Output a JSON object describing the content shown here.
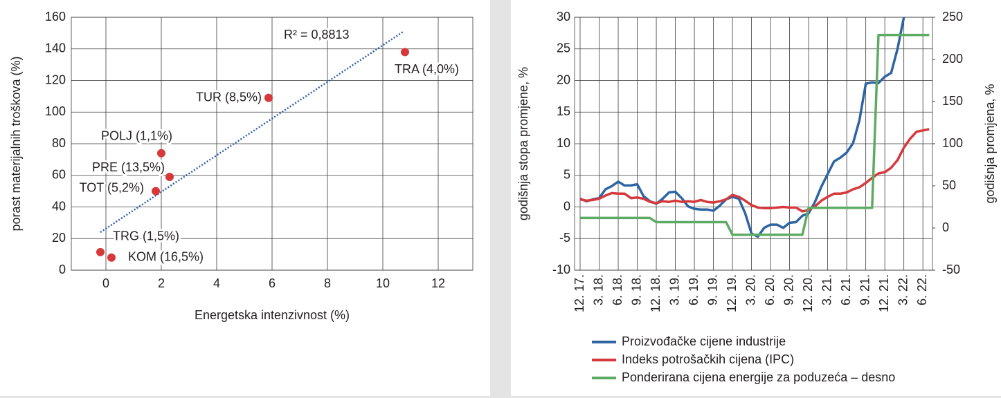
{
  "chart_data": [
    {
      "type": "scatter",
      "xlabel": "Energetska intenzivnost (%)",
      "ylabel": "porast materijalnih troškova (%)",
      "labels": [
        "TRA (4,0%)",
        "TUR (8,5%)",
        "POLJ (1,1%)",
        "PRE (13,5%)",
        "TOT (5,2%)",
        "TRG (1,5%)",
        "KOM (16,5%)"
      ],
      "x": [
        10.8,
        5.875,
        2.0,
        2.3,
        1.8,
        -0.2,
        0.2
      ],
      "y": [
        138,
        109,
        74,
        59,
        50,
        11.4,
        8
      ],
      "color": "#d7383b",
      "trendline": {
        "x": [
          -0.2,
          10.75
        ],
        "y": [
          24,
          151
        ],
        "color": "#2b5ea7",
        "label": "R² = 0,8813"
      },
      "xlim": [
        -1.25,
        13.25
      ],
      "xticks": [
        0,
        2,
        4,
        6,
        8,
        10,
        12
      ],
      "ylim": [
        0,
        160
      ],
      "yticks": [
        0,
        20,
        40,
        60,
        80,
        100,
        120,
        140,
        160
      ],
      "grid": true
    },
    {
      "type": "line",
      "ylabel": "godišnja stopa promjene, %",
      "y2label": "godišnja promjena, %",
      "categories": [
        "12. 17.",
        null,
        null,
        "3. 18.",
        null,
        null,
        "6. 18.",
        null,
        null,
        "9. 18.",
        null,
        null,
        "12. 18.",
        null,
        null,
        "3. 19.",
        null,
        null,
        "6. 19.",
        null,
        null,
        "9. 19.",
        null,
        null,
        "12. 19.",
        null,
        null,
        "3. 20.",
        null,
        null,
        "6. 20.",
        null,
        null,
        "9. 20.",
        null,
        null,
        "12. 20.",
        null,
        null,
        "3. 21.",
        null,
        null,
        "6. 21.",
        null,
        null,
        "9. 21.",
        null,
        null,
        "12. 21.",
        null,
        null,
        "3. 22.",
        null,
        null,
        "6. 22.",
        null
      ],
      "series": [
        {
          "name": "Proizvođačke cijene industrije",
          "color": "#2f64a3",
          "values": [
            1.3,
            0.9,
            1.2,
            1.4,
            2.8,
            3.3,
            4.0,
            3.4,
            3.4,
            3.6,
            1.7,
            0.9,
            0.5,
            1.3,
            2.3,
            2.4,
            1.4,
            0.1,
            -0.3,
            -0.4,
            -0.4,
            -0.6,
            0.2,
            1.2,
            1.6,
            1.3,
            -1.0,
            -4.2,
            -4.7,
            -3.3,
            -2.8,
            -2.8,
            -3.3,
            -2.5,
            -2.4,
            -1.4,
            -1.0,
            0.8,
            3.2,
            5.2,
            7.2,
            7.8,
            8.6,
            10.1,
            13.7,
            19.5,
            19.7,
            19.6,
            20.6,
            21.2,
            25.0,
            30.0,
            null,
            null,
            null,
            null
          ]
        },
        {
          "name": "Indeks potrošačkih cijena (IPC)",
          "color": "#d7383b",
          "values": [
            1.2,
            1.0,
            1.1,
            1.3,
            1.8,
            2.2,
            2.1,
            2.1,
            1.4,
            1.5,
            1.3,
            0.8,
            0.6,
            0.9,
            0.8,
            1.0,
            0.8,
            0.9,
            0.8,
            1.1,
            0.8,
            0.7,
            0.9,
            1.2,
            1.9,
            1.6,
            1.0,
            0.3,
            -0.1,
            -0.2,
            -0.2,
            -0.1,
            0.0,
            -0.1,
            -0.1,
            -0.7,
            -0.5,
            0.1,
            1.0,
            1.6,
            2.1,
            2.1,
            2.3,
            2.8,
            3.1,
            3.8,
            4.6,
            5.3,
            5.5,
            6.2,
            7.4,
            9.4,
            10.8,
            11.9,
            12.1,
            12.3
          ]
        },
        {
          "name": "Ponderirana cijena energije za poduzeća – desno",
          "color": "#5dab62",
          "axis": "y2",
          "values": [
            12,
            12,
            12,
            12,
            12,
            12,
            12,
            12,
            12,
            12,
            12,
            12,
            7,
            7,
            7,
            7,
            7,
            7,
            7,
            7,
            7,
            7,
            7,
            7,
            -8,
            -8,
            -8,
            -8,
            -8,
            -8,
            -8,
            -8,
            -8,
            -8,
            -8,
            -8,
            24,
            24,
            24,
            24,
            24,
            24,
            24,
            24,
            24,
            24,
            24,
            229,
            229,
            229,
            229,
            229,
            229,
            229,
            229,
            229
          ]
        }
      ],
      "ylim": [
        -10,
        30
      ],
      "yticks": [
        -10,
        -5,
        0,
        5,
        10,
        15,
        20,
        25,
        30
      ],
      "y2lim": [
        -50,
        250
      ],
      "y2ticks": [
        -50,
        0,
        50,
        100,
        150,
        200,
        250
      ],
      "grid": true
    }
  ]
}
